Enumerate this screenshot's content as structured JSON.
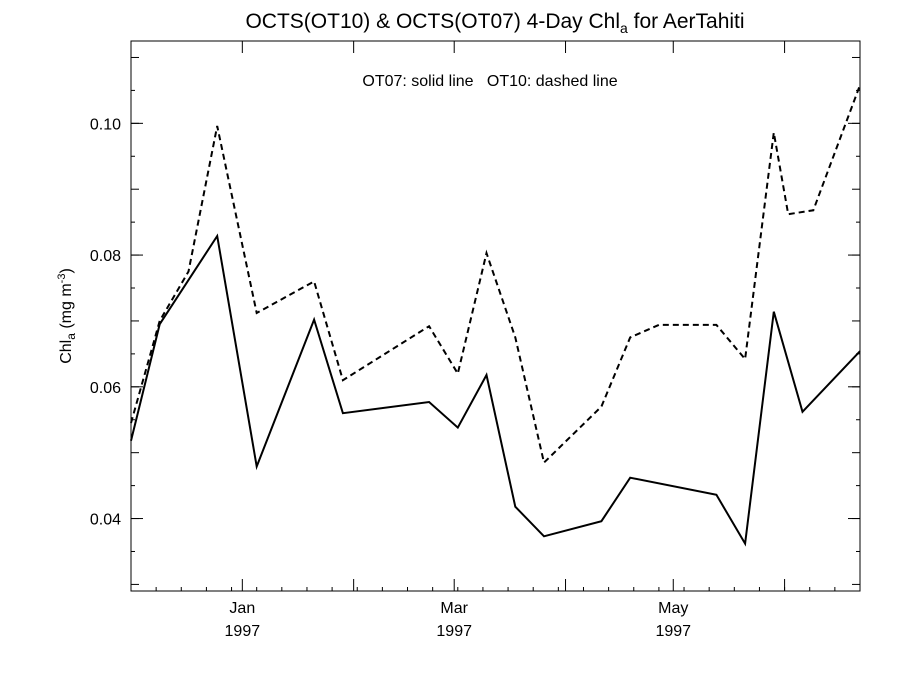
{
  "chart_data": {
    "type": "line",
    "title": {
      "main": "OCTS(OT10) & OCTS(OT07) 4-Day Chl",
      "subscript": "a",
      "suffix": " for AerTahiti"
    },
    "annotation": "OT07: solid line   OT10: dashed line",
    "ylabel": {
      "base": "Chl",
      "subscript": "a",
      "units_open": " (mg m",
      "superscript": "-3",
      "units_close": ")"
    },
    "xlabel": "",
    "xlim": [
      "1996-12-01",
      "1997-06-22"
    ],
    "ylim": [
      0.029,
      0.1125
    ],
    "grid": false,
    "x_ticks": [
      {
        "date": "1997-01-01",
        "month": "Jan",
        "year": "1997"
      },
      {
        "date": "1997-03-01",
        "month": "Mar",
        "year": "1997"
      },
      {
        "date": "1997-05-01",
        "month": "May",
        "year": "1997"
      }
    ],
    "y_ticks": [
      {
        "value": 0.04,
        "label": "0.04"
      },
      {
        "value": 0.06,
        "label": "0.06"
      },
      {
        "value": 0.08,
        "label": "0.08"
      },
      {
        "value": 0.1,
        "label": "0.10"
      }
    ],
    "series": [
      {
        "name": "OT07",
        "style": "solid",
        "points": [
          {
            "x": "1996-12-01",
            "y": 0.0518
          },
          {
            "x": "1996-12-09",
            "y": 0.0695
          },
          {
            "x": "1996-12-25",
            "y": 0.0829
          },
          {
            "x": "1997-01-05",
            "y": 0.0479
          },
          {
            "x": "1997-01-21",
            "y": 0.0702
          },
          {
            "x": "1997-01-29",
            "y": 0.056
          },
          {
            "x": "1997-02-22",
            "y": 0.0577
          },
          {
            "x": "1997-03-02",
            "y": 0.0538
          },
          {
            "x": "1997-03-10",
            "y": 0.0618
          },
          {
            "x": "1997-03-18",
            "y": 0.0418
          },
          {
            "x": "1997-03-26",
            "y": 0.0373
          },
          {
            "x": "1997-04-11",
            "y": 0.0396
          },
          {
            "x": "1997-04-19",
            "y": 0.0462
          },
          {
            "x": "1997-05-13",
            "y": 0.0436
          },
          {
            "x": "1997-05-21",
            "y": 0.0362
          },
          {
            "x": "1997-05-29",
            "y": 0.0714
          },
          {
            "x": "1997-06-06",
            "y": 0.0562
          },
          {
            "x": "1997-06-22",
            "y": 0.0654
          }
        ]
      },
      {
        "name": "OT10",
        "style": "dashed",
        "points": [
          {
            "x": "1996-12-01",
            "y": 0.0545
          },
          {
            "x": "1996-12-09",
            "y": 0.07
          },
          {
            "x": "1996-12-17",
            "y": 0.0775
          },
          {
            "x": "1996-12-25",
            "y": 0.0996
          },
          {
            "x": "1997-01-05",
            "y": 0.0712
          },
          {
            "x": "1997-01-21",
            "y": 0.076
          },
          {
            "x": "1997-01-29",
            "y": 0.061
          },
          {
            "x": "1997-02-22",
            "y": 0.0692
          },
          {
            "x": "1997-03-02",
            "y": 0.062
          },
          {
            "x": "1997-03-10",
            "y": 0.0803
          },
          {
            "x": "1997-03-18",
            "y": 0.0675
          },
          {
            "x": "1997-03-26",
            "y": 0.0485
          },
          {
            "x": "1997-04-11",
            "y": 0.057
          },
          {
            "x": "1997-04-19",
            "y": 0.0675
          },
          {
            "x": "1997-04-27",
            "y": 0.0694
          },
          {
            "x": "1997-05-13",
            "y": 0.0694
          },
          {
            "x": "1997-05-21",
            "y": 0.0642
          },
          {
            "x": "1997-05-29",
            "y": 0.0986
          },
          {
            "x": "1997-06-02",
            "y": 0.0862
          },
          {
            "x": "1997-06-09",
            "y": 0.0868
          },
          {
            "x": "1997-06-22",
            "y": 0.1058
          }
        ]
      }
    ]
  }
}
